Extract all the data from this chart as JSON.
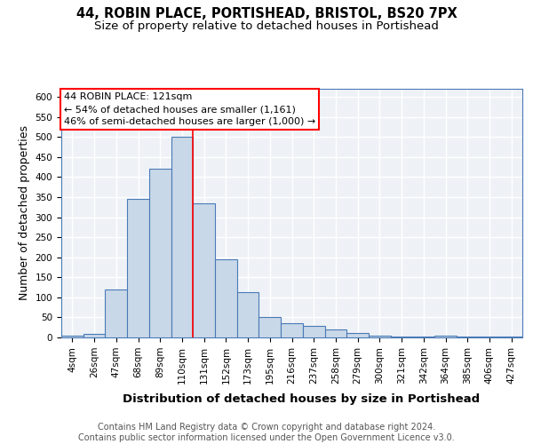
{
  "title_line1": "44, ROBIN PLACE, PORTISHEAD, BRISTOL, BS20 7PX",
  "title_line2": "Size of property relative to detached houses in Portishead",
  "xlabel": "Distribution of detached houses by size in Portishead",
  "ylabel": "Number of detached properties",
  "bar_labels": [
    "4sqm",
    "26sqm",
    "47sqm",
    "68sqm",
    "89sqm",
    "110sqm",
    "131sqm",
    "152sqm",
    "173sqm",
    "195sqm",
    "216sqm",
    "237sqm",
    "258sqm",
    "279sqm",
    "300sqm",
    "321sqm",
    "342sqm",
    "364sqm",
    "385sqm",
    "406sqm",
    "427sqm"
  ],
  "bar_values": [
    5,
    8,
    120,
    345,
    420,
    500,
    335,
    195,
    112,
    50,
    35,
    28,
    20,
    10,
    5,
    3,
    2,
    5,
    2,
    3,
    3
  ],
  "bar_color": "#c8d8e8",
  "bar_edge_color": "#4a7ab5",
  "bar_edge_width": 0.8,
  "reference_line_x": 5.5,
  "reference_line_color": "red",
  "annotation_text": "44 ROBIN PLACE: 121sqm\n← 54% of detached houses are smaller (1,161)\n46% of semi-detached houses are larger (1,000) →",
  "annotation_box_color": "white",
  "annotation_box_edge_color": "red",
  "ylim": [
    0,
    620
  ],
  "yticks": [
    0,
    50,
    100,
    150,
    200,
    250,
    300,
    350,
    400,
    450,
    500,
    550,
    600
  ],
  "background_color": "#eef2f7",
  "grid_color": "white",
  "footer_text": "Contains HM Land Registry data © Crown copyright and database right 2024.\nContains public sector information licensed under the Open Government Licence v3.0.",
  "title_fontsize": 10.5,
  "subtitle_fontsize": 9.5,
  "xlabel_fontsize": 9.5,
  "ylabel_fontsize": 9,
  "tick_fontsize": 7.5,
  "footer_fontsize": 7,
  "annot_fontsize": 8
}
